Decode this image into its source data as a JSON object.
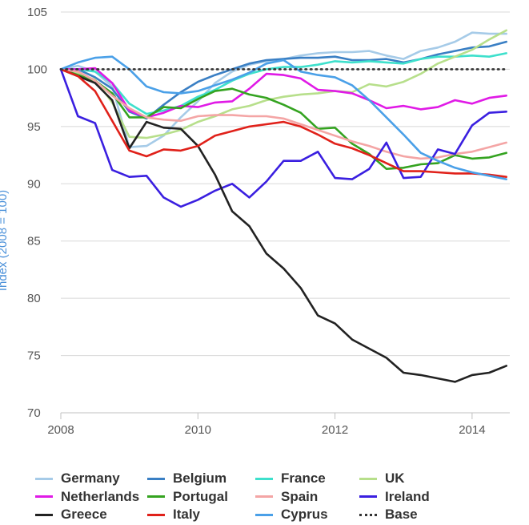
{
  "chart_data": {
    "type": "line",
    "title": "",
    "xlabel": "",
    "ylabel": "Index (2008 = 100)",
    "xlim": [
      2008,
      2014.55
    ],
    "ylim": [
      70,
      105
    ],
    "xticks": [
      2008,
      2010,
      2012,
      2014
    ],
    "yticks": [
      70,
      75,
      80,
      85,
      90,
      95,
      100,
      105
    ],
    "x": [
      2008.0,
      2008.25,
      2008.5,
      2008.75,
      2009.0,
      2009.25,
      2009.5,
      2009.75,
      2010.0,
      2010.25,
      2010.5,
      2010.75,
      2011.0,
      2011.25,
      2011.5,
      2011.75,
      2012.0,
      2012.25,
      2012.5,
      2012.75,
      2013.0,
      2013.25,
      2013.5,
      2013.75,
      2014.0,
      2014.25,
      2014.5
    ],
    "series": [
      {
        "name": "Germany",
        "color": "#a6cbe8",
        "values": [
          100,
          100.3,
          99.8,
          98.5,
          93.2,
          93.3,
          94.2,
          95.8,
          97.2,
          98.8,
          99.8,
          100.4,
          100.7,
          100.9,
          101.2,
          101.4,
          101.5,
          101.5,
          101.6,
          101.2,
          100.9,
          101.6,
          101.9,
          102.4,
          103.2,
          103.1,
          103.1
        ]
      },
      {
        "name": "Belgium",
        "color": "#3a7fc4",
        "values": [
          100,
          100,
          99.3,
          98.3,
          96.3,
          95.7,
          96.9,
          98.0,
          98.9,
          99.5,
          100.0,
          100.5,
          100.8,
          100.9,
          101.0,
          101.0,
          101.1,
          100.8,
          100.8,
          100.9,
          100.6,
          100.9,
          101.3,
          101.6,
          101.9,
          102.0,
          102.4
        ]
      },
      {
        "name": "France",
        "color": "#3ee0cc",
        "values": [
          100,
          100,
          99.8,
          98.8,
          97.0,
          96.1,
          96.4,
          96.8,
          97.6,
          98.2,
          99.0,
          99.6,
          100.0,
          100.2,
          100.2,
          100.4,
          100.7,
          100.6,
          100.7,
          100.6,
          100.5,
          100.9,
          101.1,
          101.1,
          101.2,
          101.1,
          101.4
        ]
      },
      {
        "name": "UK",
        "color": "#b7df8b",
        "values": [
          100,
          99.6,
          99.1,
          97.1,
          94.1,
          94.0,
          94.3,
          94.7,
          95.4,
          95.9,
          96.5,
          96.8,
          97.3,
          97.6,
          97.8,
          97.9,
          98.1,
          98.0,
          98.7,
          98.5,
          98.9,
          99.6,
          100.5,
          101.1,
          101.7,
          102.6,
          103.4
        ]
      },
      {
        "name": "Netherlands",
        "color": "#e01ae6",
        "values": [
          100,
          100,
          100.1,
          98.8,
          96.4,
          95.8,
          96.2,
          96.8,
          96.7,
          97.1,
          97.2,
          98.3,
          99.6,
          99.5,
          99.2,
          98.2,
          98.1,
          97.9,
          97.3,
          96.6,
          96.8,
          96.5,
          96.7,
          97.3,
          97.0,
          97.5,
          97.7
        ]
      },
      {
        "name": "Portugal",
        "color": "#34a320",
        "values": [
          100,
          99.5,
          99.0,
          97.9,
          95.8,
          95.8,
          96.7,
          96.6,
          97.4,
          98.1,
          98.3,
          97.8,
          97.5,
          96.9,
          96.2,
          94.8,
          94.9,
          93.5,
          92.6,
          91.3,
          91.4,
          91.7,
          91.8,
          92.5,
          92.2,
          92.3,
          92.7
        ]
      },
      {
        "name": "Spain",
        "color": "#f4a5a5",
        "values": [
          100,
          99.8,
          99.0,
          97.7,
          96.6,
          95.8,
          95.6,
          95.5,
          95.9,
          96.0,
          96.0,
          95.9,
          95.9,
          95.7,
          95.2,
          94.7,
          94.2,
          93.7,
          93.3,
          92.8,
          92.4,
          92.2,
          92.3,
          92.6,
          92.8,
          93.2,
          93.6
        ]
      },
      {
        "name": "Ireland",
        "color": "#3a1fe0",
        "values": [
          100,
          95.9,
          95.3,
          91.2,
          90.6,
          90.7,
          88.8,
          88.0,
          88.6,
          89.4,
          90.0,
          88.8,
          90.2,
          92.0,
          92.0,
          92.8,
          90.5,
          90.4,
          91.3,
          93.6,
          90.5,
          90.6,
          93.0,
          92.6,
          95.1,
          96.2,
          96.3
        ]
      },
      {
        "name": "Greece",
        "color": "#222222",
        "values": [
          100,
          99.4,
          98.8,
          97.3,
          93.1,
          95.4,
          94.9,
          94.8,
          93.3,
          90.8,
          87.6,
          86.3,
          83.9,
          82.6,
          80.9,
          78.5,
          77.8,
          76.4,
          75.6,
          74.8,
          73.5,
          73.3,
          73.0,
          72.7,
          73.3,
          73.5,
          74.1
        ]
      },
      {
        "name": "Italy",
        "color": "#e0211a",
        "values": [
          100,
          99.4,
          98.1,
          95.5,
          92.9,
          92.4,
          93.0,
          92.9,
          93.3,
          94.2,
          94.6,
          95.0,
          95.2,
          95.4,
          95.0,
          94.3,
          93.5,
          93.1,
          92.5,
          91.8,
          91.1,
          91.1,
          91.0,
          90.9,
          90.9,
          90.8,
          90.6
        ]
      },
      {
        "name": "Cyprus",
        "color": "#4aa0e8",
        "values": [
          100,
          100.6,
          101.0,
          101.1,
          100.0,
          98.5,
          98.0,
          97.9,
          98.1,
          98.6,
          99.1,
          99.7,
          100.5,
          100.8,
          99.8,
          99.5,
          99.3,
          98.6,
          97.3,
          95.8,
          94.3,
          92.7,
          92.0,
          91.4,
          91.0,
          90.7,
          90.4
        ]
      },
      {
        "name": "Base",
        "color": "#333333",
        "dashed": true,
        "values": [
          100,
          100,
          100,
          100,
          100,
          100,
          100,
          100,
          100,
          100,
          100,
          100,
          100,
          100,
          100,
          100,
          100,
          100,
          100,
          100,
          100,
          100,
          100,
          100,
          100,
          100,
          100
        ]
      }
    ],
    "legend": [
      [
        "Germany",
        "Belgium",
        "France",
        "UK"
      ],
      [
        "Netherlands",
        "Portugal",
        "Spain",
        "Ireland"
      ],
      [
        "Greece",
        "Italy",
        "Cyprus",
        "Base"
      ]
    ],
    "legend_position": "bottom",
    "grid": true
  }
}
